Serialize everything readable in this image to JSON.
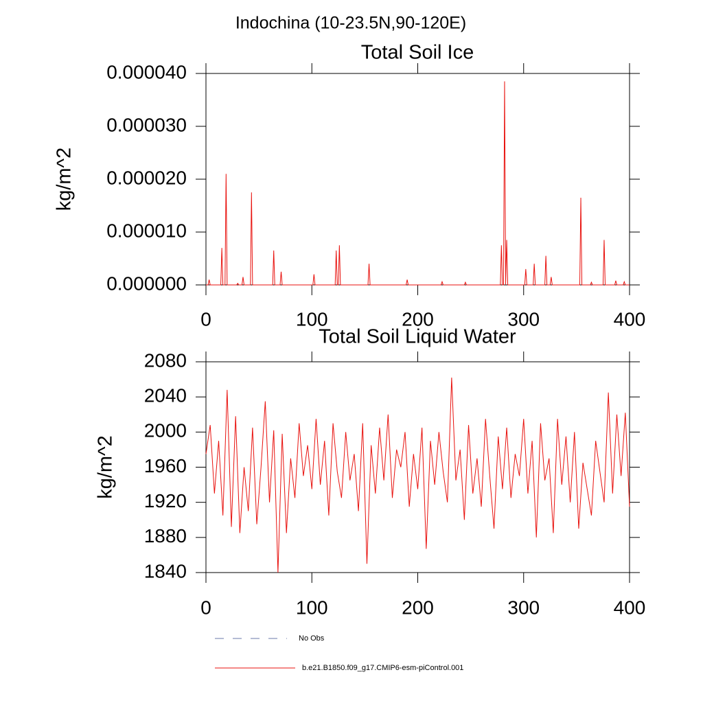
{
  "title": "Indochina (10-23.5N,90-120E)",
  "legend_extra": {
    "name": "No Obs",
    "color": "#6a78a8"
  },
  "chart_data": [
    {
      "type": "line",
      "title": "Total Soil Ice",
      "ylabel": "kg/m^2",
      "xlim": [
        0,
        400
      ],
      "xticks": [
        0,
        100,
        200,
        300,
        400
      ],
      "ylim": [
        0,
        4e-05
      ],
      "yticks": [
        {
          "value": 0,
          "label": "0.000000"
        },
        {
          "value": 1e-05,
          "label": "0.000010"
        },
        {
          "value": 2e-05,
          "label": "0.000020"
        },
        {
          "value": 3e-05,
          "label": "0.000030"
        },
        {
          "value": 4e-05,
          "label": "0.000040"
        }
      ],
      "series": [
        {
          "color": "#e8100c",
          "x": [
            0,
            2,
            3,
            4,
            14,
            15,
            16,
            18,
            19,
            20,
            29,
            30,
            31,
            34,
            35,
            36,
            42,
            43,
            44,
            63,
            64,
            65,
            70,
            71,
            72,
            101,
            102,
            103,
            122,
            123,
            124,
            125,
            126,
            127,
            153,
            154,
            155,
            189,
            190,
            191,
            222,
            223,
            224,
            244,
            245,
            246,
            278,
            279,
            280,
            281,
            282,
            283,
            284,
            285,
            301,
            302,
            303,
            309,
            310,
            311,
            320,
            321,
            322,
            325,
            326,
            327,
            353,
            354,
            355,
            363,
            364,
            365,
            375,
            376,
            377,
            386,
            387,
            388,
            394,
            395,
            396,
            400
          ],
          "values": [
            0,
            0,
            1e-06,
            0,
            0,
            7e-06,
            0,
            0,
            2.1e-05,
            0,
            0,
            3e-07,
            0,
            0,
            1.5e-06,
            0,
            0,
            1.75e-05,
            0,
            0,
            6.5e-06,
            0,
            0,
            2.5e-06,
            0,
            0,
            2e-06,
            0,
            0,
            6.5e-06,
            0,
            0,
            7.5e-06,
            0,
            0,
            4e-06,
            0,
            0,
            1e-06,
            0,
            0,
            6e-07,
            0,
            0,
            5e-07,
            0,
            0,
            7.5e-06,
            0,
            0,
            3.85e-05,
            0,
            8.5e-06,
            0,
            0,
            3e-06,
            0,
            0,
            4e-06,
            0,
            0,
            5.5e-06,
            0,
            0,
            1.5e-06,
            0,
            0,
            1.65e-05,
            0,
            0,
            5e-07,
            0,
            0,
            8.5e-06,
            0,
            0,
            8e-07,
            0,
            0,
            6e-07,
            0,
            0
          ]
        }
      ]
    },
    {
      "type": "line",
      "title": "Total Soil Liquid Water",
      "ylabel": "kg/m^2",
      "xlim": [
        0,
        400
      ],
      "xticks": [
        0,
        100,
        200,
        300,
        400
      ],
      "ylim": [
        1840,
        2080
      ],
      "yticks": [
        1840,
        1880,
        1920,
        1960,
        2000,
        2040,
        2080
      ],
      "series": [
        {
          "name": "b.e21.B1850.f09_g17.CMIP6-esm-piControl.001",
          "color": "#e8100c",
          "x": [
            0,
            4,
            8,
            12,
            16,
            20,
            24,
            28,
            32,
            36,
            40,
            44,
            48,
            52,
            56,
            60,
            64,
            68,
            72,
            76,
            80,
            84,
            88,
            92,
            96,
            100,
            104,
            108,
            112,
            116,
            120,
            124,
            128,
            132,
            136,
            140,
            144,
            148,
            152,
            156,
            160,
            164,
            168,
            172,
            176,
            180,
            184,
            188,
            192,
            196,
            200,
            204,
            208,
            212,
            216,
            220,
            224,
            228,
            232,
            236,
            240,
            244,
            248,
            252,
            256,
            260,
            264,
            268,
            272,
            276,
            280,
            284,
            288,
            292,
            296,
            300,
            304,
            308,
            312,
            316,
            320,
            324,
            328,
            332,
            336,
            340,
            344,
            348,
            352,
            356,
            360,
            364,
            368,
            372,
            376,
            380,
            384,
            388,
            392,
            396,
            400
          ],
          "values": [
            1975,
            2008,
            1930,
            1990,
            1905,
            2048,
            1892,
            2018,
            1885,
            1960,
            1910,
            2005,
            1895,
            1960,
            2035,
            1920,
            2002,
            1840,
            1998,
            1885,
            1970,
            1925,
            2010,
            1950,
            1985,
            1935,
            2015,
            1940,
            1990,
            1905,
            2010,
            1955,
            1925,
            2000,
            1945,
            1975,
            1910,
            2010,
            1850,
            1985,
            1930,
            2005,
            1945,
            2020,
            1925,
            1980,
            1960,
            2000,
            1915,
            1975,
            1935,
            2005,
            1867,
            1990,
            1940,
            2000,
            1955,
            1920,
            2062,
            1945,
            1980,
            1900,
            2008,
            1930,
            1970,
            1915,
            2015,
            1950,
            1890,
            1995,
            1935,
            2005,
            1925,
            1975,
            1950,
            2015,
            1930,
            1990,
            1880,
            2010,
            1945,
            1970,
            1885,
            2015,
            1940,
            1995,
            1920,
            2000,
            1890,
            1965,
            1935,
            1905,
            1990,
            1955,
            1920,
            2045,
            1930,
            2020,
            1950,
            2022,
            1915
          ]
        }
      ]
    }
  ]
}
